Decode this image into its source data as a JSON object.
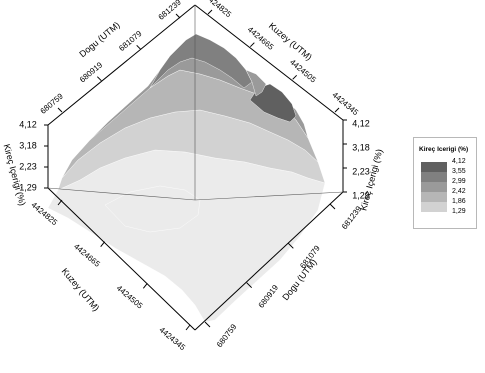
{
  "chart_data": {
    "type": "surface",
    "legend": {
      "title": "Kireç Icerigi (%)",
      "levels": [
        "4,12",
        "3,55",
        "2,99",
        "2,42",
        "1,86",
        "1,29"
      ],
      "colors": [
        "#606060",
        "#808080",
        "#9a9a9a",
        "#b6b6b6",
        "#d2d2d2",
        "#ebebeb"
      ]
    },
    "axes": {
      "dogu_front": {
        "title": "Dogu (UTM)",
        "ticks": [
          "681239",
          "681079",
          "680919",
          "680759"
        ]
      },
      "kuzey_front": {
        "title": "Kuzey (UTM)",
        "ticks": [
          "4424825",
          "4424665",
          "4424505",
          "4424345"
        ]
      },
      "dogu_back": {
        "title": "Dogu (UTM)",
        "ticks": [
          "681239",
          "681079",
          "680919",
          "680759"
        ]
      },
      "kuzey_back": {
        "title": "Kuzey (UTM)",
        "ticks": [
          "4424825",
          "4424665",
          "4424505",
          "4424345"
        ]
      },
      "z_left": {
        "title": "Kireç Içerigi (%)",
        "ticks": [
          "4,12",
          "3,18",
          "2,23",
          "1,29"
        ]
      },
      "z_right": {
        "title": "Kireç Içerigi (%)",
        "ticks": [
          "4,12",
          "3,18",
          "2,23",
          "1,29"
        ]
      }
    },
    "zlim": [
      1.29,
      4.12
    ]
  }
}
